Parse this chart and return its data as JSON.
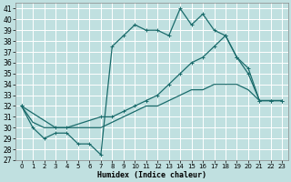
{
  "xlabel": "Humidex (Indice chaleur)",
  "background_color": "#c0e0e0",
  "grid_color": "#b0d0d0",
  "line_color": "#1a6b6b",
  "xlim": [
    -0.5,
    23.5
  ],
  "ylim": [
    27,
    41.5
  ],
  "yticks": [
    27,
    28,
    29,
    30,
    31,
    32,
    33,
    34,
    35,
    36,
    37,
    38,
    39,
    40,
    41
  ],
  "xticks": [
    0,
    1,
    2,
    3,
    4,
    5,
    6,
    7,
    8,
    9,
    10,
    11,
    12,
    13,
    14,
    15,
    16,
    17,
    18,
    19,
    20,
    21,
    22,
    23
  ],
  "series1_x": [
    0,
    1,
    2,
    3,
    4,
    5,
    6,
    7,
    8,
    9,
    10,
    11,
    12,
    13,
    14,
    15,
    16,
    17,
    18,
    19,
    20,
    21,
    22,
    23
  ],
  "series1_y": [
    32,
    30,
    29,
    29.5,
    29.5,
    28.5,
    28.5,
    27.5,
    37.5,
    38.5,
    39.5,
    39,
    39,
    38.5,
    41,
    39.5,
    40.5,
    39,
    38.5,
    36.5,
    35,
    32.5,
    32.5,
    32.5
  ],
  "series2_x": [
    0,
    3,
    4,
    7,
    8,
    9,
    10,
    11,
    12,
    13,
    14,
    15,
    16,
    17,
    18,
    19,
    20,
    21,
    22,
    23
  ],
  "series2_y": [
    32,
    30,
    30,
    31,
    31,
    31.5,
    32,
    32.5,
    33,
    34,
    35,
    36,
    36.5,
    37.5,
    38.5,
    36.5,
    35.5,
    32.5,
    32.5,
    32.5
  ],
  "series3_x": [
    0,
    1,
    2,
    3,
    4,
    5,
    6,
    7,
    8,
    9,
    10,
    11,
    12,
    13,
    14,
    15,
    16,
    17,
    18,
    19,
    20,
    21,
    22,
    23
  ],
  "series3_y": [
    32,
    30.5,
    30,
    30,
    30,
    30,
    30,
    30,
    30.5,
    31,
    31.5,
    32,
    32,
    32.5,
    33,
    33.5,
    33.5,
    34,
    34,
    34,
    33.5,
    32.5,
    32.5,
    32.5
  ]
}
